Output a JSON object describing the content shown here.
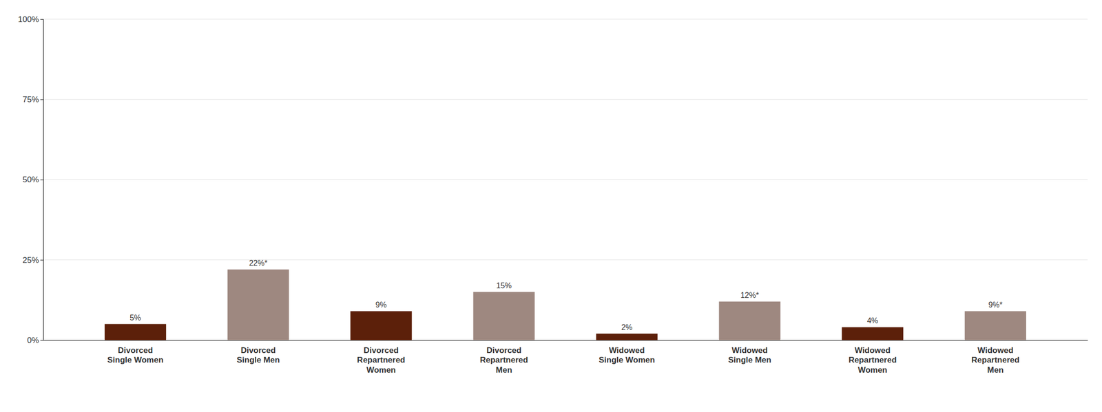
{
  "chart_data": {
    "type": "bar",
    "categories": [
      "Divorced\nSingle Women",
      "Divorced\nSingle Men",
      "Divorced\nRepartnered\nWomen",
      "Divorced\nRepartnered\nMen",
      "Widowed\nSingle Women",
      "Widowed\nSingle Men",
      "Widowed\nRepartnered\nWomen",
      "Widowed\nRepartnered\nMen"
    ],
    "values": [
      5,
      22,
      9,
      15,
      2,
      12,
      4,
      9
    ],
    "value_labels": [
      "5%",
      "22%*",
      "9%",
      "15%",
      "2%",
      "12%*",
      "4%",
      "9%*"
    ],
    "colors": [
      "#5C200A",
      "#9E8880",
      "#5C200A",
      "#9E8880",
      "#5C200A",
      "#9E8880",
      "#5C200A",
      "#9E8880"
    ],
    "ylim": [
      0,
      100
    ],
    "yticks": [
      {
        "value": 0,
        "label": "0%"
      },
      {
        "value": 25,
        "label": "25%"
      },
      {
        "value": 50,
        "label": "50%"
      },
      {
        "value": 75,
        "label": "75%"
      },
      {
        "value": 100,
        "label": "100%"
      }
    ],
    "grid": true,
    "data_labels": true
  }
}
